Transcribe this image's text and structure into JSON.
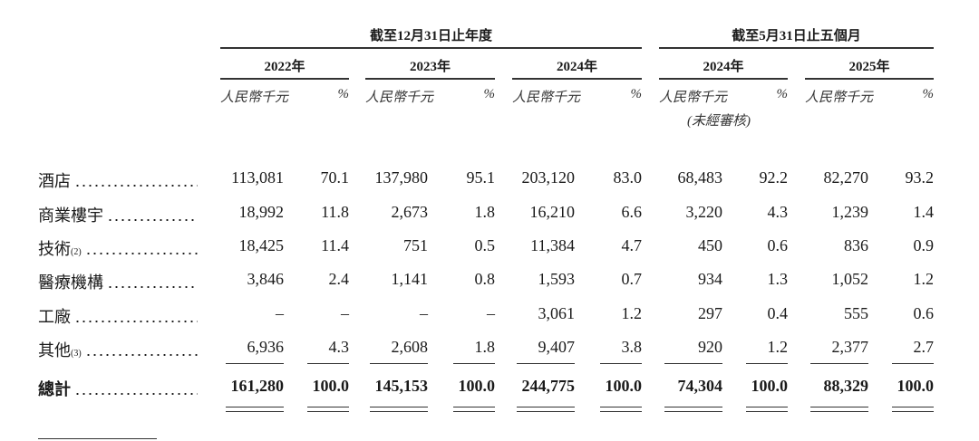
{
  "header": {
    "group1": "截至12月31日止年度",
    "group2": "截至5月31日止五個月",
    "years": [
      "2022年",
      "2023年",
      "2024年",
      "2024年",
      "2025年"
    ],
    "amount_label": "人民幣千元",
    "pct_label": "%",
    "unaudited_note": "(未經審核)"
  },
  "rows": [
    {
      "label": "酒店",
      "sup": "",
      "values": [
        "113,081",
        "70.1",
        "137,980",
        "95.1",
        "203,120",
        "83.0",
        "68,483",
        "92.2",
        "82,270",
        "93.2"
      ]
    },
    {
      "label": "商業樓宇",
      "sup": "",
      "values": [
        "18,992",
        "11.8",
        "2,673",
        "1.8",
        "16,210",
        "6.6",
        "3,220",
        "4.3",
        "1,239",
        "1.4"
      ]
    },
    {
      "label": "技術",
      "sup": "(2)",
      "values": [
        "18,425",
        "11.4",
        "751",
        "0.5",
        "11,384",
        "4.7",
        "450",
        "0.6",
        "836",
        "0.9"
      ]
    },
    {
      "label": "醫療機構",
      "sup": "",
      "values": [
        "3,846",
        "2.4",
        "1,141",
        "0.8",
        "1,593",
        "0.7",
        "934",
        "1.3",
        "1,052",
        "1.2"
      ]
    },
    {
      "label": "工廠",
      "sup": "",
      "values": [
        "–",
        "–",
        "–",
        "–",
        "3,061",
        "1.2",
        "297",
        "0.4",
        "555",
        "0.6"
      ]
    },
    {
      "label": "其他",
      "sup": "(3)",
      "values": [
        "6,936",
        "4.3",
        "2,608",
        "1.8",
        "9,407",
        "3.8",
        "920",
        "1.2",
        "2,377",
        "2.7"
      ]
    }
  ],
  "total": {
    "label": "總計",
    "values": [
      "161,280",
      "100.0",
      "145,153",
      "100.0",
      "244,775",
      "100.0",
      "74,304",
      "100.0",
      "88,329",
      "100.0"
    ]
  }
}
